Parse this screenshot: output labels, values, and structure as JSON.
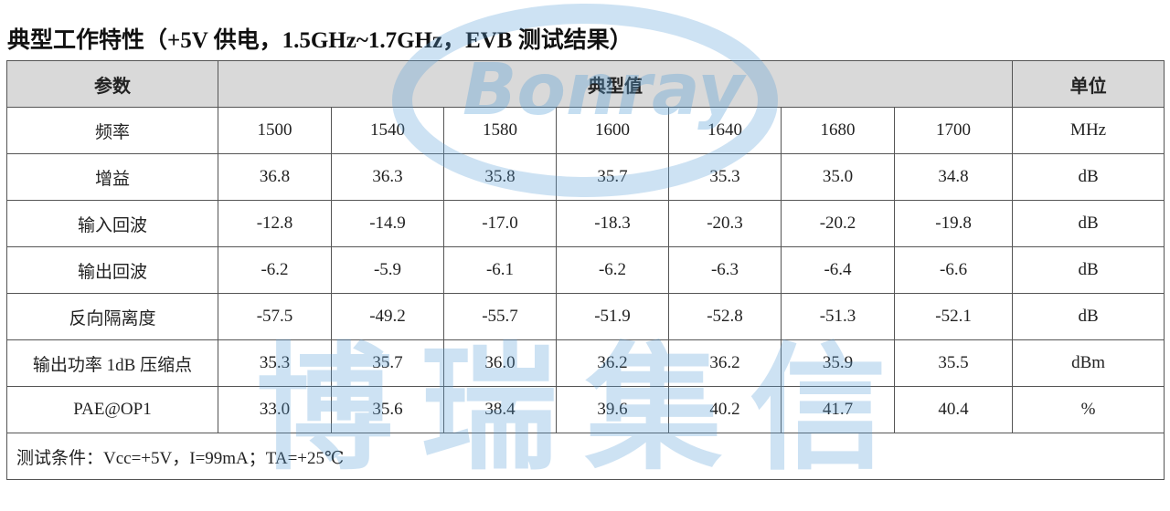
{
  "title": "典型工作特性（+5V 供电，1.5GHz~1.7GHz，EVB 测试结果）",
  "table": {
    "header": {
      "param": "参数",
      "typical": "典型值",
      "unit": "单位"
    },
    "rows": [
      {
        "label": "频率",
        "values": [
          "1500",
          "1540",
          "1580",
          "1600",
          "1640",
          "1680",
          "1700"
        ],
        "unit": "MHz"
      },
      {
        "label": "增益",
        "values": [
          "36.8",
          "36.3",
          "35.8",
          "35.7",
          "35.3",
          "35.0",
          "34.8"
        ],
        "unit": "dB"
      },
      {
        "label": "输入回波",
        "values": [
          "-12.8",
          "-14.9",
          "-17.0",
          "-18.3",
          "-20.3",
          "-20.2",
          "-19.8"
        ],
        "unit": "dB"
      },
      {
        "label": "输出回波",
        "values": [
          "-6.2",
          "-5.9",
          "-6.1",
          "-6.2",
          "-6.3",
          "-6.4",
          "-6.6"
        ],
        "unit": "dB"
      },
      {
        "label": "反向隔离度",
        "values": [
          "-57.5",
          "-49.2",
          "-55.7",
          "-51.9",
          "-52.8",
          "-51.3",
          "-52.1"
        ],
        "unit": "dB"
      },
      {
        "label": "输出功率 1dB 压缩点",
        "values": [
          "35.3",
          "35.7",
          "36.0",
          "36.2",
          "36.2",
          "35.9",
          "35.5"
        ],
        "unit": "dBm"
      },
      {
        "label": "PAE@OP1",
        "values": [
          "33.0",
          "35.6",
          "38.4",
          "39.6",
          "40.2",
          "41.7",
          "40.4"
        ],
        "unit": "%"
      }
    ],
    "note": "测试条件：Vcc=+5V，I=99mA；TA=+25℃"
  },
  "watermark": {
    "logo": "Bonray",
    "text": "博瑞集信"
  }
}
